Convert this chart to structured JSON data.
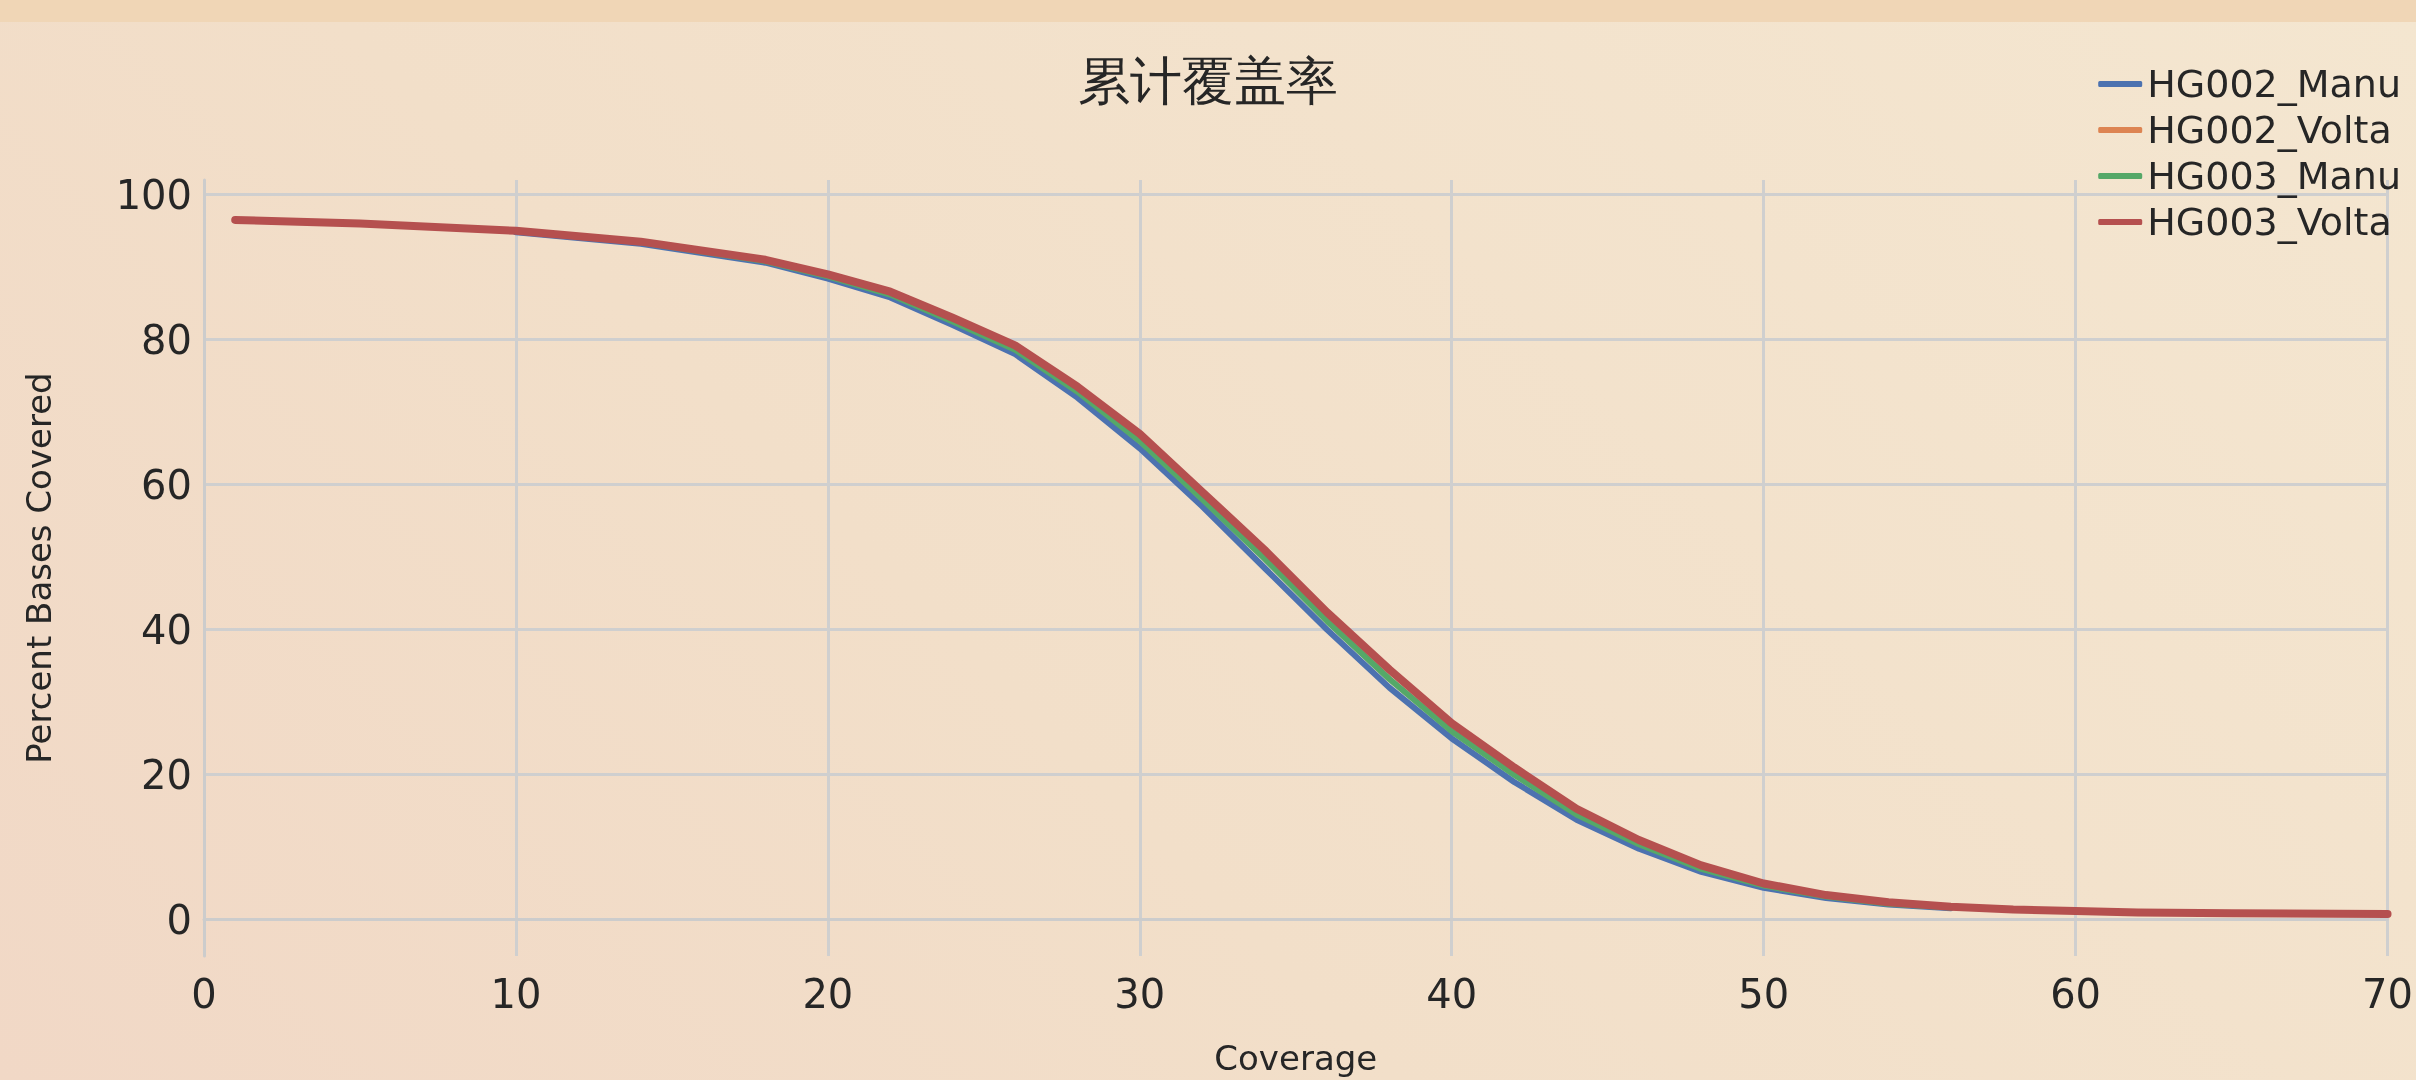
{
  "chart_data": {
    "type": "line",
    "title": "累计覆盖率",
    "xlabel": "Coverage",
    "ylabel": "Percent Bases Covered",
    "x": [
      1,
      5,
      10,
      14,
      18,
      20,
      22,
      24,
      26,
      28,
      30,
      32,
      34,
      36,
      38,
      40,
      42,
      44,
      46,
      48,
      50,
      52,
      54,
      56,
      58,
      60,
      62,
      65,
      70
    ],
    "series": [
      {
        "name": "HG002_Manu",
        "color": "#4c72b0",
        "values": [
          null,
          null,
          94.8,
          93.2,
          90.6,
          88.4,
          85.8,
          82,
          78,
          72,
          65,
          57,
          48.5,
          40,
          32,
          25,
          19,
          13.8,
          9.8,
          6.6,
          4.4,
          3,
          2.1,
          1.6,
          null,
          null,
          null,
          null,
          null
        ]
      },
      {
        "name": "HG002_Volta",
        "color": "#dd8452",
        "values": [
          null,
          null,
          null,
          null,
          null,
          null,
          null,
          null,
          null,
          null,
          null,
          null,
          null,
          null,
          null,
          null,
          null,
          null,
          null,
          null,
          null,
          null,
          null,
          null,
          null,
          null,
          null,
          null,
          null
        ]
      },
      {
        "name": "HG003_Manu",
        "color": "#55a868",
        "values": [
          null,
          null,
          null,
          93.4,
          90.8,
          88.7,
          86.2,
          82.5,
          78.6,
          72.8,
          66,
          58,
          49.8,
          41.2,
          33.2,
          26,
          20,
          14.5,
          10.4,
          7,
          4.7,
          3.2,
          2.2,
          1.7,
          null,
          null,
          null,
          null,
          null
        ]
      },
      {
        "name": "HG003_Volta",
        "color": "#b5504f",
        "values": [
          96.5,
          96,
          95,
          93.5,
          91,
          89,
          86.6,
          83,
          79.2,
          73.5,
          67,
          59,
          51,
          42.4,
          34.5,
          27.1,
          21,
          15.3,
          11,
          7.5,
          5,
          3.4,
          2.4,
          1.8,
          1.4,
          1.2,
          1.0,
          0.9,
          0.8
        ]
      }
    ],
    "xlim": [
      0,
      70
    ],
    "xticks": [
      0,
      10,
      20,
      30,
      40,
      50,
      60,
      70
    ],
    "ylim": [
      -5,
      102
    ],
    "yticks": [
      0,
      20,
      40,
      60,
      80,
      100
    ],
    "grid": true,
    "legend": "top right",
    "marker": "none",
    "line_style": "solid"
  }
}
